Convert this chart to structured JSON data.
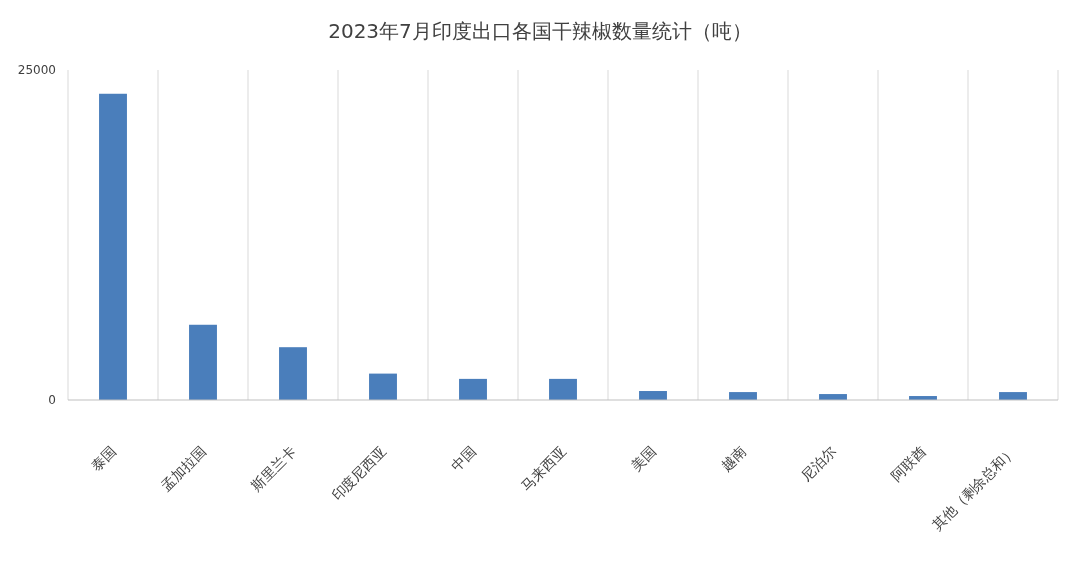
{
  "chart_data": {
    "type": "bar",
    "title": "2023年7月印度出口各国干辣椒数量统计（吨）",
    "categories": [
      "泰国",
      "孟加拉国",
      "斯里兰卡",
      "印度尼西亚",
      "中国",
      "马来西亚",
      "美国",
      "越南",
      "尼泊尔",
      "阿联酋",
      "其他（剩余总和）"
    ],
    "values": [
      23200,
      5700,
      4000,
      2000,
      1600,
      1600,
      680,
      600,
      450,
      300,
      600
    ],
    "color": "#4a7ebb",
    "ylim": [
      0,
      25000
    ],
    "yticks": [
      0,
      25000
    ],
    "grid": "x"
  }
}
